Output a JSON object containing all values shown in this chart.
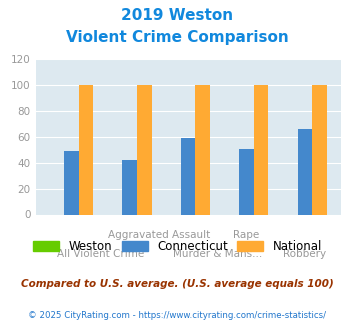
{
  "title_line1": "2019 Weston",
  "title_line2": "Violent Crime Comparison",
  "weston": [
    0,
    0,
    0,
    0,
    0
  ],
  "connecticut": [
    49,
    42,
    59,
    51,
    66
  ],
  "national": [
    100,
    100,
    100,
    100,
    100
  ],
  "weston_color": "#66cc00",
  "connecticut_color": "#4488cc",
  "national_color": "#ffaa33",
  "bg_color": "#dde9f0",
  "title_color": "#1188dd",
  "ylim": [
    0,
    120
  ],
  "yticks": [
    0,
    20,
    40,
    60,
    80,
    100,
    120
  ],
  "legend_labels": [
    "Weston",
    "Connecticut",
    "National"
  ],
  "cat_top": [
    "",
    "Aggravated Assault",
    "Assault",
    "",
    ""
  ],
  "cat_bot": [
    "All Violent Crime",
    "",
    "Murder & Mans...",
    "Rape",
    "Robbery"
  ],
  "footnote1": "Compared to U.S. average. (U.S. average equals 100)",
  "footnote2": "© 2025 CityRating.com - https://www.cityrating.com/crime-statistics/",
  "footnote1_color": "#993300",
  "footnote2_color": "#2277cc",
  "grid_color": "#ffffff",
  "tick_color": "#999999"
}
